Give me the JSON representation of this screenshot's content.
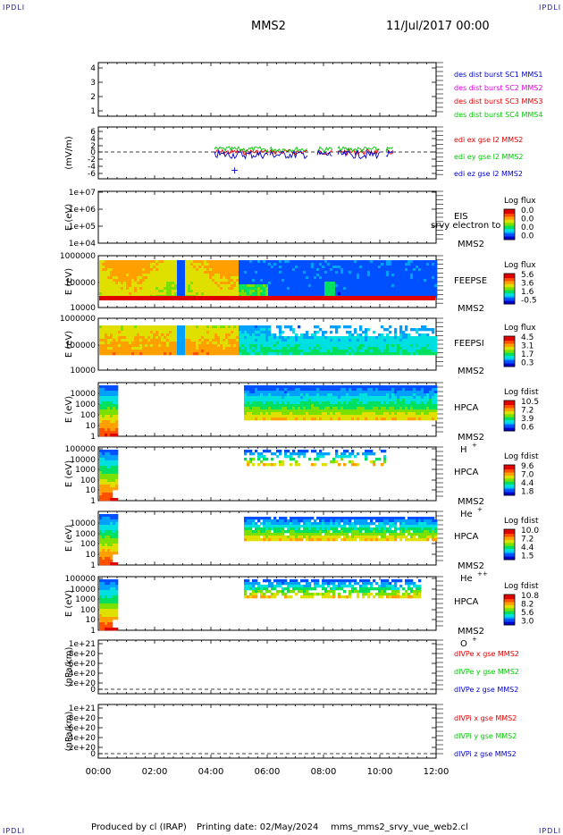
{
  "header": {
    "corner_left_top": "IPDLI",
    "corner_right_top": "IPDLI",
    "corner_left_bottom": "IPDLI",
    "corner_right_bottom": "IPDLI",
    "title": "MMS2",
    "date": "11/Jul/2017 00:00"
  },
  "footer": {
    "produced_by": "Produced by cl (IRAP)",
    "printing_date": "Printing date: 02/May/2024",
    "file": "mms_mms2_srvy_vue_web2.cl"
  },
  "colors": {
    "mms1": "#0000c8",
    "mms2": "#e000e0",
    "mms3": "#e00000",
    "mms4": "#00c800",
    "x_comp": "#e00000",
    "y_comp": "#00c800",
    "z_comp": "#0000c8"
  },
  "chart_data": {
    "type": "multi-panel time series",
    "x_axis": {
      "range": [
        "00:00",
        "12:00"
      ],
      "tick_labels": [
        "00:00",
        "02:00",
        "04:00",
        "06:00",
        "08:00",
        "10:00",
        "12:00"
      ]
    },
    "panels": [
      {
        "id": "burst",
        "ylabel": "",
        "yticks": [
          "4",
          "3",
          "2",
          "1"
        ],
        "legend": [
          {
            "label": "des dist burst SC1 MMS1",
            "color": "#0000c8"
          },
          {
            "label": "des dist burst SC2 MMS2",
            "color": "#e000e0"
          },
          {
            "label": "des dist burst SC3 MMS3",
            "color": "#e00000"
          },
          {
            "label": "des dist burst SC4 MMS4",
            "color": "#00c800"
          }
        ]
      },
      {
        "id": "efield",
        "ylabel": "(mV/m)",
        "yticks": [
          "6",
          "4",
          "2",
          "0",
          "-2",
          "-4",
          "-6"
        ],
        "legend": [
          {
            "label": "edi ex gse l2 MMS2",
            "color": "#e00000"
          },
          {
            "label": "edi ey gse l2 MMS2",
            "color": "#00c800"
          },
          {
            "label": "edi ez gse l2 MMS2",
            "color": "#0000c8"
          }
        ]
      },
      {
        "id": "eis",
        "ylabel": "E (eV)",
        "yticks": [
          "1e+07",
          "1e+06",
          "1e+05",
          "1e+04"
        ],
        "instrument": "EIS",
        "overlay": "srvy electron to",
        "sc": "MMS2",
        "colorbar": {
          "title": "Log flux",
          "labels": [
            "0.0",
            "0.0",
            "0.0",
            "0.0"
          ]
        }
      },
      {
        "id": "feepse",
        "ylabel": "E (eV)",
        "yticks": [
          "1000000",
          "100000",
          "10000"
        ],
        "instrument": "FEEPSE",
        "sc": "MMS2",
        "colorbar": {
          "title": "Log flux",
          "labels": [
            "5.6",
            "3.6",
            "1.6",
            "-0.5"
          ]
        }
      },
      {
        "id": "feepsi",
        "ylabel": "E (eV)",
        "yticks": [
          "1000000",
          "100000",
          "10000"
        ],
        "instrument": "FEEPSI",
        "sc": "MMS2",
        "colorbar": {
          "title": "Log flux",
          "labels": [
            "4.5",
            "3.1",
            "1.7",
            "0.3"
          ]
        }
      },
      {
        "id": "hpca_h",
        "ylabel": "E (eV)",
        "yticks": [
          "10000",
          "1000",
          "100",
          "10",
          "1"
        ],
        "instrument": "HPCA",
        "sc": "MMS2",
        "species": "H",
        "species_sup": "+",
        "colorbar": {
          "title": "Log fdist",
          "labels": [
            "10.5",
            "7.2",
            "3.9",
            "0.6"
          ]
        }
      },
      {
        "id": "hpca_he",
        "ylabel": "E (eV)",
        "yticks": [
          "100000",
          "10000",
          "1000",
          "100",
          "10",
          "1"
        ],
        "instrument": "HPCA",
        "sc": "MMS2",
        "species": "He",
        "species_sup": "+",
        "colorbar": {
          "title": "Log fdist",
          "labels": [
            "9.6",
            "7.0",
            "4.4",
            "1.8"
          ]
        }
      },
      {
        "id": "hpca_he2",
        "ylabel": "E (eV)",
        "yticks": [
          "10000",
          "1000",
          "100",
          "10",
          "1"
        ],
        "instrument": "HPCA",
        "sc": "MMS2",
        "species": "He",
        "species_sup": "++",
        "colorbar": {
          "title": "Log fdist",
          "labels": [
            "10.0",
            "7.2",
            "4.4",
            "1.5"
          ]
        }
      },
      {
        "id": "hpca_o",
        "ylabel": "E (eV)",
        "yticks": [
          "100000",
          "10000",
          "1000",
          "100",
          "10",
          "1"
        ],
        "instrument": "HPCA",
        "sc": "MMS2",
        "species": "O",
        "species_sup": "+",
        "colorbar": {
          "title": "Log fdist",
          "labels": [
            "10.8",
            "8.2",
            "5.6",
            "3.0"
          ]
        }
      },
      {
        "id": "divpe",
        "ylabel": "(nPa/km)",
        "yticks": [
          "1e+21",
          "8e+20",
          "6e+20",
          "4e+20",
          "2e+20",
          "0"
        ],
        "legend": [
          {
            "label": "dIVPe x gse MMS2",
            "color": "#e00000"
          },
          {
            "label": "dIVPe y gse MMS2",
            "color": "#00c800"
          },
          {
            "label": "dIVPe z gse MMS2",
            "color": "#0000c8"
          }
        ]
      },
      {
        "id": "divpi",
        "ylabel": "(nPa/km)",
        "yticks": [
          "1e+21",
          "8e+20",
          "6e+20",
          "4e+20",
          "2e+20",
          "0"
        ],
        "legend": [
          {
            "label": "dIVPi x gse MMS2",
            "color": "#e00000"
          },
          {
            "label": "dIVPi y gse MMS2",
            "color": "#00c800"
          },
          {
            "label": "dIVPi z gse MMS2",
            "color": "#0000c8"
          }
        ]
      }
    ]
  }
}
